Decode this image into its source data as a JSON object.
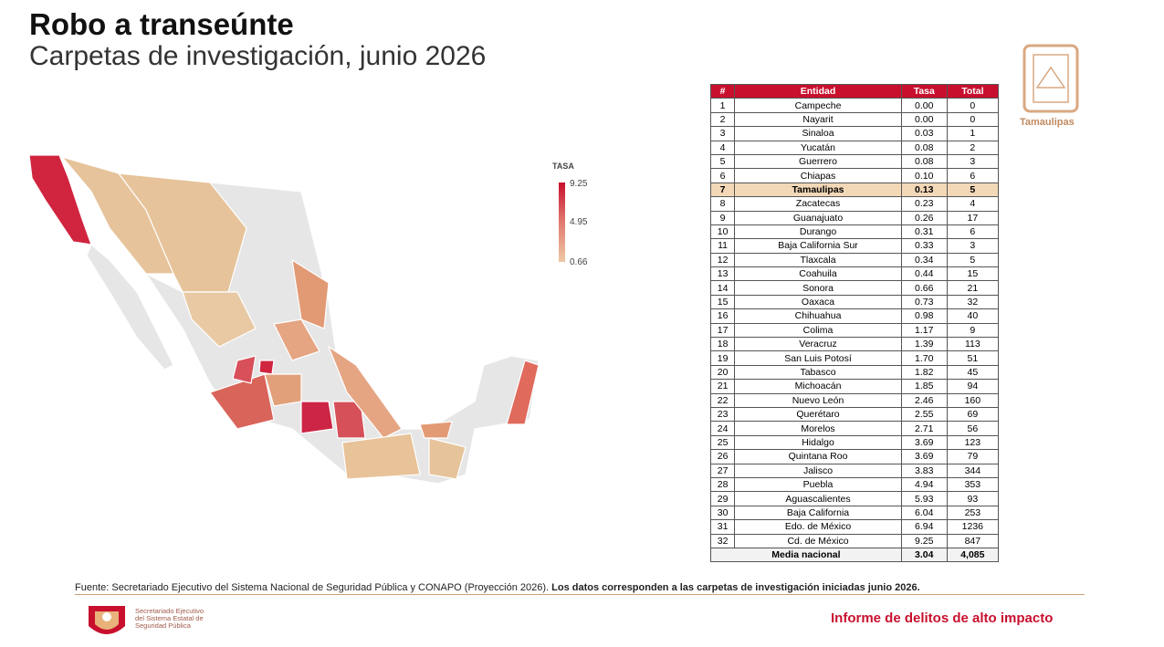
{
  "header": {
    "title": "Robo a transeúnte",
    "subtitle": "Carpetas de investigación, junio 2026"
  },
  "legend": {
    "title": "TASA",
    "labels": [
      "9.25",
      "4.95",
      "0.66"
    ]
  },
  "table": {
    "columns": [
      "#",
      "Entidad",
      "Tasa",
      "Total"
    ],
    "rows": [
      [
        "1",
        "Campeche",
        "0.00",
        "0"
      ],
      [
        "2",
        "Nayarit",
        "0.00",
        "0"
      ],
      [
        "3",
        "Sinaloa",
        "0.03",
        "1"
      ],
      [
        "4",
        "Yucatán",
        "0.08",
        "2"
      ],
      [
        "5",
        "Guerrero",
        "0.08",
        "3"
      ],
      [
        "6",
        "Chiapas",
        "0.10",
        "6"
      ],
      [
        "7",
        "Tamaulipas",
        "0.13",
        "5"
      ],
      [
        "8",
        "Zacatecas",
        "0.23",
        "4"
      ],
      [
        "9",
        "Guanajuato",
        "0.26",
        "17"
      ],
      [
        "10",
        "Durango",
        "0.31",
        "6"
      ],
      [
        "11",
        "Baja California Sur",
        "0.33",
        "3"
      ],
      [
        "12",
        "Tlaxcala",
        "0.34",
        "5"
      ],
      [
        "13",
        "Coahuila",
        "0.44",
        "15"
      ],
      [
        "14",
        "Sonora",
        "0.66",
        "21"
      ],
      [
        "15",
        "Oaxaca",
        "0.73",
        "32"
      ],
      [
        "16",
        "Chihuahua",
        "0.98",
        "40"
      ],
      [
        "17",
        "Colima",
        "1.17",
        "9"
      ],
      [
        "18",
        "Veracruz",
        "1.39",
        "113"
      ],
      [
        "19",
        "San Luis Potosí",
        "1.70",
        "51"
      ],
      [
        "20",
        "Tabasco",
        "1.82",
        "45"
      ],
      [
        "21",
        "Michoacán",
        "1.85",
        "94"
      ],
      [
        "22",
        "Nuevo León",
        "2.46",
        "160"
      ],
      [
        "23",
        "Querétaro",
        "2.55",
        "69"
      ],
      [
        "24",
        "Morelos",
        "2.71",
        "56"
      ],
      [
        "25",
        "Hidalgo",
        "3.69",
        "123"
      ],
      [
        "26",
        "Quintana Roo",
        "3.69",
        "79"
      ],
      [
        "27",
        "Jalisco",
        "3.83",
        "344"
      ],
      [
        "28",
        "Puebla",
        "4.94",
        "353"
      ],
      [
        "29",
        "Aguascalientes",
        "5.93",
        "93"
      ],
      [
        "30",
        "Baja California",
        "6.04",
        "253"
      ],
      [
        "31",
        "Edo. de México",
        "6.94",
        "1236"
      ],
      [
        "32",
        "Cd. de México",
        "9.25",
        "847"
      ]
    ],
    "highlight_row": 6,
    "footer": [
      "Media nacional",
      "3.04",
      "4,085"
    ]
  },
  "logo": {
    "name": "Tamaulipas"
  },
  "source": {
    "text": "Fuente: Secretariado Ejecutivo del Sistema Nacional de Seguridad Pública y CONAPO (Proyección 2026).",
    "bold": "Los datos corresponden a las carpetas de investigación iniciadas junio 2026",
    "end": "."
  },
  "agency": [
    "Secretariado Ejecutivo",
    "del Sistema Estatal de",
    "Seguridad Pública"
  ],
  "report": "Informe de delitos de alto impacto"
}
